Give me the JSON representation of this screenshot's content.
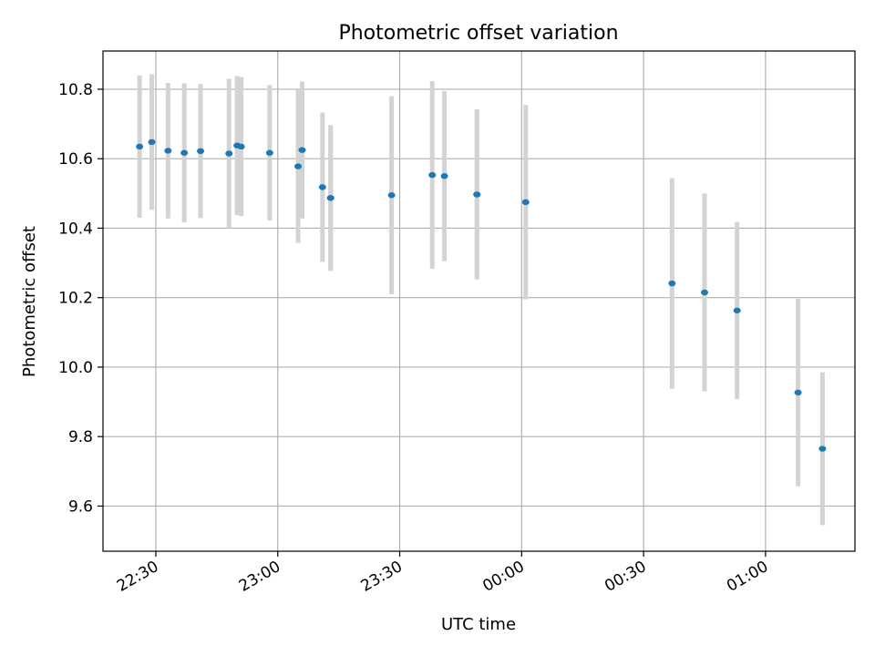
{
  "chart_data": {
    "type": "scatter",
    "title": "Photometric offset variation",
    "xlabel": "UTC time",
    "ylabel": "Photometric offset",
    "grid": true,
    "xlim": [
      "22:17",
      "01:22"
    ],
    "ylim": [
      9.47,
      10.91
    ],
    "x_ticks": [
      "22:30",
      "23:00",
      "23:30",
      "00:00",
      "00:30",
      "01:00"
    ],
    "y_ticks": [
      "9.6",
      "9.8",
      "10.0",
      "10.2",
      "10.4",
      "10.6",
      "10.8"
    ],
    "colors": {
      "points": "#1f77b4",
      "errorbars": "#d3d3d3",
      "grid": "#b0b0b0"
    },
    "points": [
      {
        "time": "22:26",
        "value": 10.635,
        "err": 0.205
      },
      {
        "time": "22:29",
        "value": 10.648,
        "err": 0.195
      },
      {
        "time": "22:33",
        "value": 10.623,
        "err": 0.195
      },
      {
        "time": "22:37",
        "value": 10.617,
        "err": 0.2
      },
      {
        "time": "22:41",
        "value": 10.622,
        "err": 0.193
      },
      {
        "time": "22:48",
        "value": 10.615,
        "err": 0.215
      },
      {
        "time": "22:50",
        "value": 10.638,
        "err": 0.2
      },
      {
        "time": "22:51",
        "value": 10.635,
        "err": 0.2
      },
      {
        "time": "22:58",
        "value": 10.617,
        "err": 0.195
      },
      {
        "time": "23:05",
        "value": 10.578,
        "err": 0.22
      },
      {
        "time": "23:06",
        "value": 10.625,
        "err": 0.197
      },
      {
        "time": "23:11",
        "value": 10.518,
        "err": 0.215
      },
      {
        "time": "23:13",
        "value": 10.487,
        "err": 0.21
      },
      {
        "time": "23:13",
        "value": 10.487,
        "err": 0.205
      },
      {
        "time": "23:28",
        "value": 10.495,
        "err": 0.285
      },
      {
        "time": "23:38",
        "value": 10.553,
        "err": 0.27
      },
      {
        "time": "23:41",
        "value": 10.55,
        "err": 0.245
      },
      {
        "time": "23:49",
        "value": 10.497,
        "err": 0.245
      },
      {
        "time": "23:49",
        "value": 10.497,
        "err": 0.235
      },
      {
        "time": "00:01",
        "value": 10.475,
        "err": 0.28
      },
      {
        "time": "00:37",
        "value": 10.241,
        "err": 0.303
      },
      {
        "time": "00:45",
        "value": 10.215,
        "err": 0.285
      },
      {
        "time": "00:53",
        "value": 10.163,
        "err": 0.255
      },
      {
        "time": "01:08",
        "value": 9.927,
        "err": 0.27
      },
      {
        "time": "01:14",
        "value": 9.765,
        "err": 0.22
      }
    ]
  }
}
